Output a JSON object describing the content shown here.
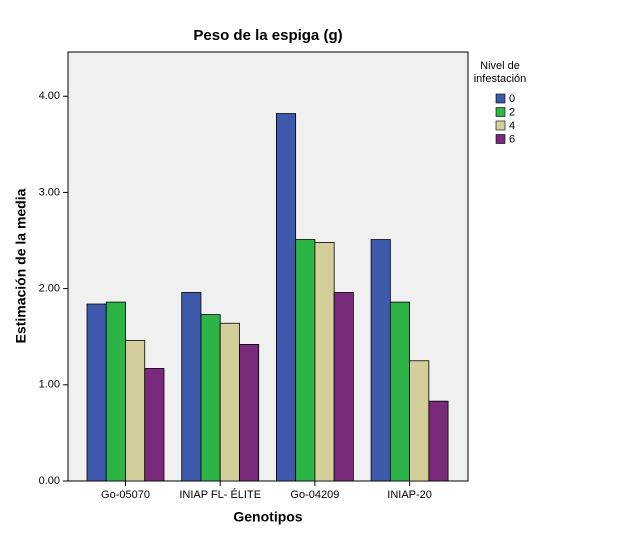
{
  "chart_data": {
    "type": "bar",
    "title": "Peso de la espiga (g)",
    "x_label": "Genotipos",
    "y_label": "Estimación de la media",
    "legend_title": [
      "Nivel de",
      "infestación"
    ],
    "categories": [
      "Go-05070",
      "INIAP FL- ÉLITE",
      "Go-04209",
      "INIAP-20"
    ],
    "series": [
      {
        "name": "0",
        "color": "#3e58ac",
        "values": [
          1.84,
          1.96,
          3.82,
          2.51
        ]
      },
      {
        "name": "2",
        "color": "#2db446",
        "values": [
          1.86,
          1.73,
          2.51,
          1.86
        ]
      },
      {
        "name": "4",
        "color": "#d4cf9a",
        "values": [
          1.46,
          1.64,
          2.48,
          1.25
        ]
      },
      {
        "name": "6",
        "color": "#7a2a7a",
        "values": [
          1.17,
          1.42,
          1.96,
          0.83
        ]
      }
    ],
    "ylim": [
      0,
      4.46
    ],
    "yticks": [
      {
        "value": 0,
        "label": "0.00"
      },
      {
        "value": 1,
        "label": "1.00"
      },
      {
        "value": 2,
        "label": "2.00"
      },
      {
        "value": 3,
        "label": "3.00"
      },
      {
        "value": 4,
        "label": "4.00"
      }
    ],
    "legend": "right"
  }
}
